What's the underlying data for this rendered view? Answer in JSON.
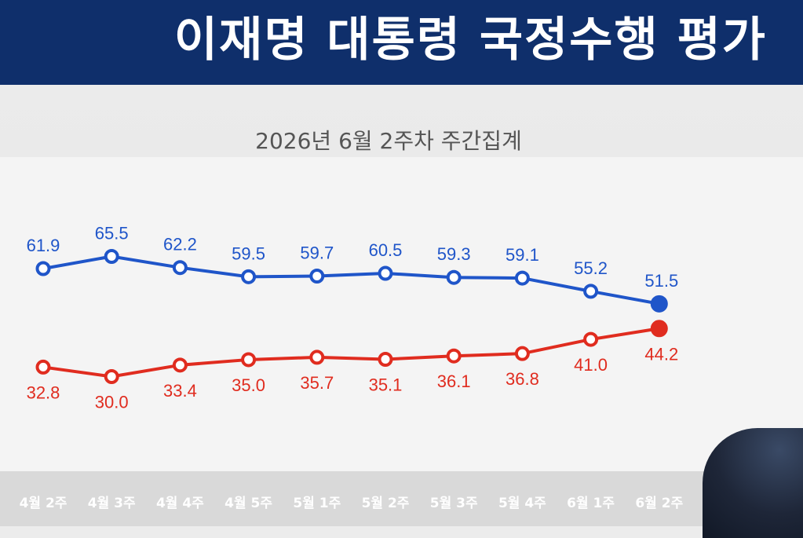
{
  "header": {
    "title": "이재명 대통령 국정수행 평가"
  },
  "chart_data": {
    "type": "line",
    "subtitle": "2026년 6월 2주차 주간집계",
    "categories": [
      "4월 2주",
      "4월 3주",
      "4월 4주",
      "4월 5주",
      "5월 1주",
      "5월 2주",
      "5월 3주",
      "5월 4주",
      "6월 1주",
      "6월 2주"
    ],
    "series": [
      {
        "values": [
          61.9,
          65.5,
          62.2,
          59.5,
          59.7,
          60.5,
          59.3,
          59.1,
          55.2,
          51.5
        ],
        "color": "#1f55c9"
      },
      {
        "values": [
          32.8,
          30.0,
          33.4,
          35.0,
          35.7,
          35.1,
          36.1,
          36.8,
          41.0,
          44.2
        ],
        "color": "#e02c1f"
      }
    ],
    "grid": false,
    "legend": "none"
  }
}
